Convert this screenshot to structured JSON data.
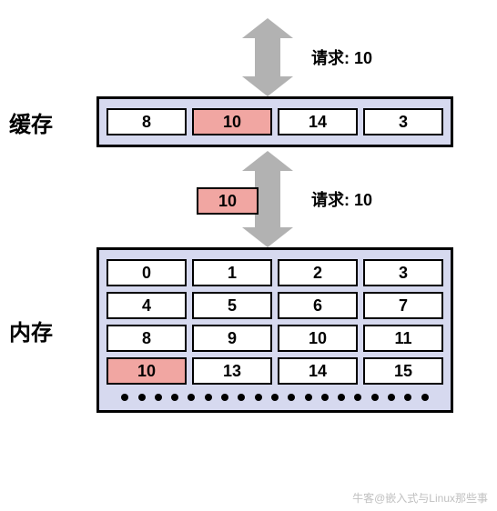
{
  "colors": {
    "panel_bg": "#d6d9ef",
    "cell_bg": "#ffffff",
    "highlight_bg": "#f1a6a2",
    "border": "#000000",
    "arrow_fill": "#b2b2b2",
    "dot_fill": "#000000",
    "watermark": "#c0c0c0"
  },
  "labels": {
    "cache": "缓存",
    "memory": "内存",
    "request_prefix": "请求: "
  },
  "top_request": {
    "value": "10"
  },
  "mid_request": {
    "value": "10"
  },
  "floating_value": "10",
  "cache": {
    "cells": [
      {
        "v": "8",
        "hl": false
      },
      {
        "v": "10",
        "hl": true
      },
      {
        "v": "14",
        "hl": false
      },
      {
        "v": "3",
        "hl": false
      }
    ]
  },
  "memory": {
    "cells": [
      {
        "v": "0",
        "hl": false
      },
      {
        "v": "1",
        "hl": false
      },
      {
        "v": "2",
        "hl": false
      },
      {
        "v": "3",
        "hl": false
      },
      {
        "v": "4",
        "hl": false
      },
      {
        "v": "5",
        "hl": false
      },
      {
        "v": "6",
        "hl": false
      },
      {
        "v": "7",
        "hl": false
      },
      {
        "v": "8",
        "hl": false
      },
      {
        "v": "9",
        "hl": false
      },
      {
        "v": "10",
        "hl": false
      },
      {
        "v": "11",
        "hl": false
      },
      {
        "v": "10",
        "hl": true
      },
      {
        "v": "13",
        "hl": false
      },
      {
        "v": "14",
        "hl": false
      },
      {
        "v": "15",
        "hl": false
      }
    ],
    "dot_count": 19
  },
  "typography": {
    "side_label_fontsize": 24,
    "cell_fontsize": 18,
    "req_fontsize": 18,
    "font_weight": 900
  },
  "arrow": {
    "width": 56,
    "height": 86,
    "shaft_half_width": 14,
    "head_half_width": 28,
    "head_height": 22
  },
  "watermark": "牛客@嵌入式与Linux那些事"
}
